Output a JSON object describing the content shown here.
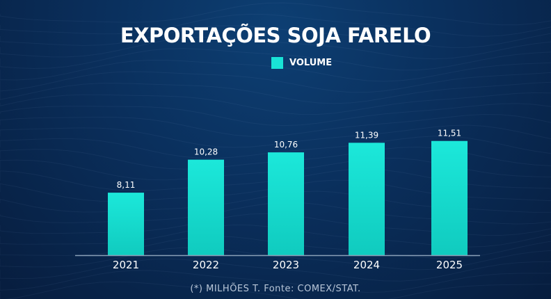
{
  "chart_data": {
    "type": "bar",
    "title": "EXPORTAÇÕES SOJA FARELO",
    "legend": [
      {
        "name": "VOLUME",
        "color": "#19e3d6"
      }
    ],
    "legend_placement": "top-center",
    "categories": [
      "2021",
      "2022",
      "2023",
      "2024",
      "2025"
    ],
    "series": [
      {
        "name": "VOLUME",
        "values": [
          8.11,
          10.28,
          10.76,
          11.39,
          11.51
        ]
      }
    ],
    "data_labels": [
      "8,11",
      "10,28",
      "10,76",
      "11,39",
      "11,51"
    ],
    "ylim": [
      4,
      12
    ],
    "grid": false,
    "footnote": "(*) MILHÕES T.  Fonte: COMEX/STAT."
  },
  "colors": {
    "bar_top": "#1ce8da",
    "bar_bottom": "#10cbbf",
    "background": "#0a2f5c",
    "axis": "#8aa0b8"
  }
}
